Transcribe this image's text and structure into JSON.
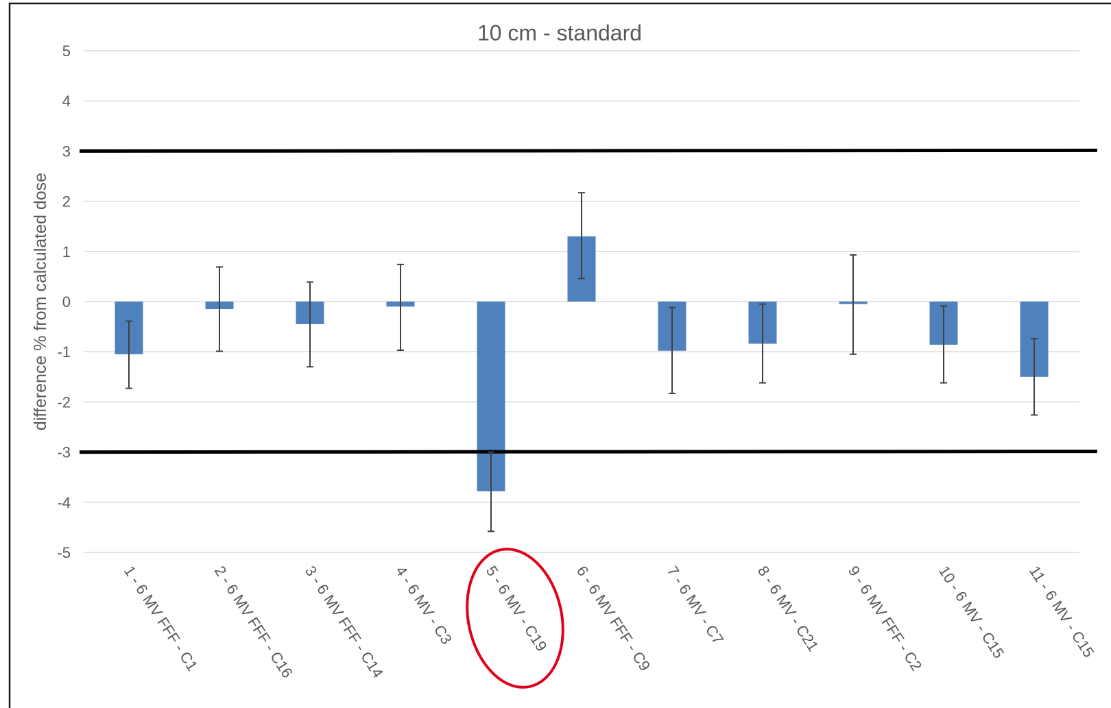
{
  "chart_data": {
    "type": "bar",
    "title": "10 cm - standard",
    "xlabel": "",
    "ylabel": "difference % from calculated dose",
    "ylim": [
      -5,
      5
    ],
    "yticks": [
      5,
      4,
      3,
      2,
      1,
      0,
      -1,
      -2,
      -3,
      -4,
      -5
    ],
    "grid": true,
    "legend": "none",
    "categories": [
      "1 - 6 MV FFF - C1",
      "2 - 6 MV FFF - C16",
      "3 - 6 MV FFF - C14",
      "4 - 6 MV - C3",
      "5 - 6 MV - C19",
      "6 - 6 MV FFF - C9",
      "7 - 6 MV - C7",
      "8 - 6 MV - C21",
      "9 - 6 MV FFF - C2",
      "10 - 6 MV - C15",
      "11 - 6 MV - C15"
    ],
    "values": [
      -1.05,
      -0.15,
      -0.45,
      -0.1,
      -3.78,
      1.3,
      -0.98,
      -0.84,
      -0.05,
      -0.86,
      -1.5
    ],
    "error_low": [
      -1.73,
      -0.99,
      -1.3,
      -0.97,
      -4.58,
      0.46,
      -1.83,
      -1.62,
      -1.05,
      -1.62,
      -2.26
    ],
    "error_high": [
      -0.39,
      0.69,
      0.39,
      0.74,
      -3.0,
      2.17,
      -0.12,
      -0.05,
      0.93,
      -0.09,
      -0.74
    ],
    "threshold_lines": [
      3,
      -3
    ],
    "highlighted_category": "5 - 6 MV - C19",
    "colors": {
      "bar": "#4f81bd",
      "error_bar": "#404040",
      "threshold": "#000000",
      "highlight": "#e0001b",
      "grid": "#d9d9d9",
      "text": "#595959"
    }
  }
}
